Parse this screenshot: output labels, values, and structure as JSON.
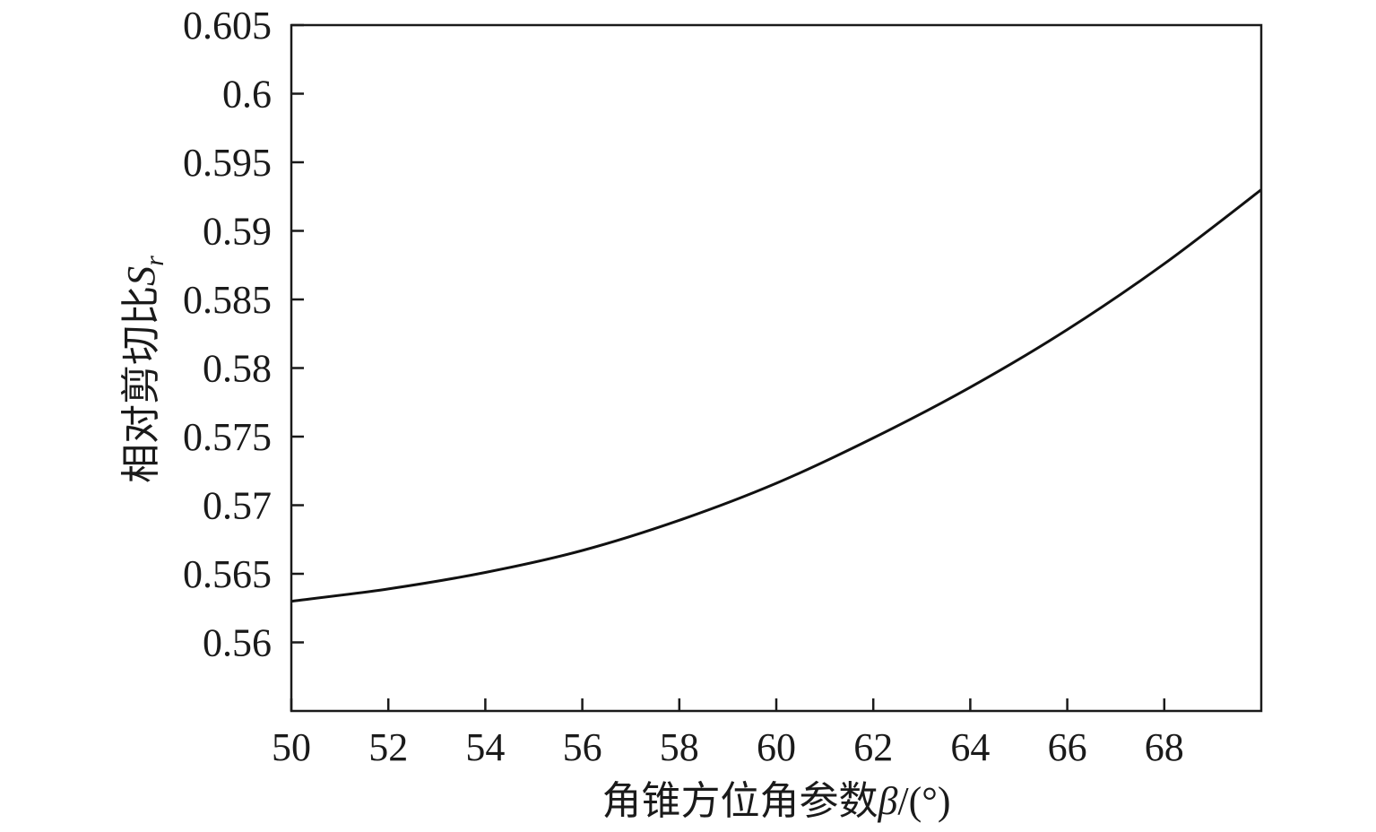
{
  "chart_data": {
    "type": "line",
    "xlabel": "角锥方位角参数β/(°)",
    "ylabel": "相对剪切比Sr",
    "xlabel_parts": {
      "text": "角锥方位角参数",
      "symbol": "β",
      "unit": "/(°)"
    },
    "ylabel_parts": {
      "text": "相对剪切比",
      "symbol": "S",
      "subscript": "r"
    },
    "xlim": [
      50,
      70
    ],
    "ylim": [
      0.555,
      0.605
    ],
    "xticks": [
      50,
      52,
      54,
      56,
      58,
      60,
      62,
      64,
      66,
      68
    ],
    "xtick_labels": [
      "50",
      "52",
      "54",
      "56",
      "58",
      "60",
      "62",
      "64",
      "66",
      "68"
    ],
    "yticks": [
      0.56,
      0.565,
      0.57,
      0.575,
      0.58,
      0.585,
      0.59,
      0.595,
      0.6,
      0.605
    ],
    "ytick_labels": [
      "0.56",
      "0.565",
      "0.57",
      "0.575",
      "0.58",
      "0.585",
      "0.59",
      "0.595",
      "0.6",
      "0.605"
    ],
    "grid": false,
    "series": [
      {
        "color": "#111111",
        "x": [
          50,
          52,
          54,
          56,
          58,
          60,
          62,
          64,
          66,
          68,
          70
        ],
        "y": [
          0.563,
          0.5639,
          0.5651,
          0.5667,
          0.5689,
          0.5716,
          0.5749,
          0.5786,
          0.5828,
          0.5876,
          0.593
        ]
      }
    ]
  }
}
